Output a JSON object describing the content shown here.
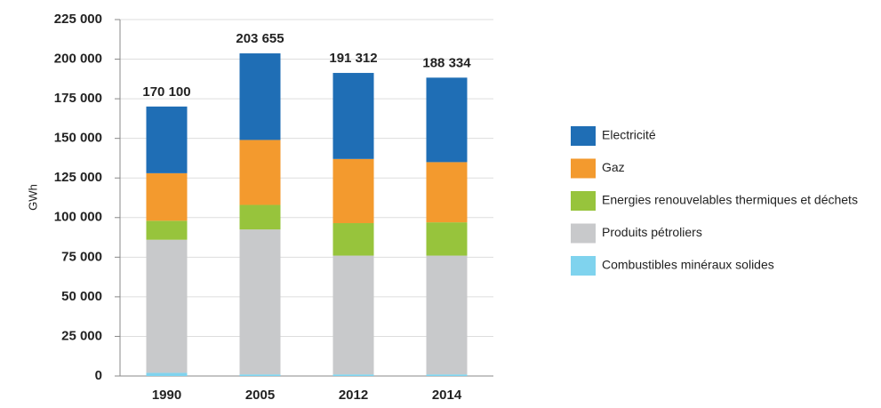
{
  "chart_data": {
    "type": "stacked_bar",
    "y_label": "GWh",
    "categories": [
      "1990",
      "2005",
      "2012",
      "2014"
    ],
    "series": [
      {
        "name": "Combustibles minéraux solides",
        "color": "#7fd3ee",
        "values": [
          2000,
          1000,
          1000,
          1000
        ]
      },
      {
        "name": "Produits pétroliers",
        "color": "#c8c9cb",
        "values": [
          84000,
          91500,
          75000,
          75000
        ]
      },
      {
        "name": "Energies renouvelables thermiques et déchets",
        "color": "#97c43c",
        "values": [
          12000,
          15500,
          20500,
          21000
        ]
      },
      {
        "name": "Gaz",
        "color": "#f39a2e",
        "values": [
          30000,
          41000,
          40500,
          38000
        ]
      },
      {
        "name": "Electricité",
        "color": "#1f6eb5",
        "values": [
          42100,
          54655,
          54312,
          53334
        ]
      }
    ],
    "totals": [
      170100,
      203655,
      191312,
      188334
    ],
    "total_labels": [
      "170 100",
      "203 655",
      "191 312",
      "188 334"
    ],
    "ylim": [
      0,
      225000
    ],
    "yticks": [
      0,
      {
        "value": 25000,
        "label": "25 000"
      },
      {
        "value": 50000,
        "label": "50 000"
      },
      {
        "value": 75000,
        "label": "75 000"
      },
      {
        "value": 100000,
        "label": "100 000"
      },
      {
        "value": 125000,
        "label": "125 000"
      },
      {
        "value": 150000,
        "label": "150 000"
      },
      {
        "value": 175000,
        "label": "175 000"
      },
      {
        "value": 200000,
        "label": "200 000"
      },
      {
        "value": 225000,
        "label": "225 000"
      }
    ],
    "grid": true,
    "legend": "right"
  }
}
